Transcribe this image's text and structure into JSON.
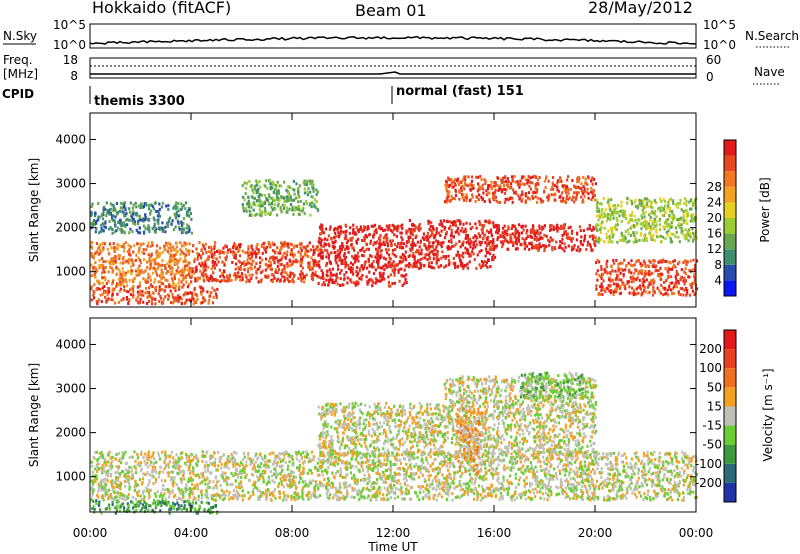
{
  "header": {
    "station": "Hokkaido (fitACF)",
    "beam": "Beam 01",
    "date": "28/May/2012"
  },
  "strip": {
    "nsky_label": "N.Sky",
    "nsearch_label": "N.Search",
    "nsky_ticks": [
      "10^5",
      "10^0"
    ],
    "nsearch_ticks": [
      "10^5",
      "10^0"
    ],
    "freq_label": "Freq.",
    "freq_unit": "[MHz]",
    "freq_ticks": [
      "18",
      "8"
    ],
    "nave_label": "Nave",
    "nave_ticks": [
      "60",
      "0"
    ],
    "cpid_label": "CPID",
    "modes": [
      {
        "name": "themis 3300",
        "start_hour": 0
      },
      {
        "name": "normal (fast) 151",
        "start_hour": 12
      }
    ]
  },
  "chart_data": [
    {
      "type": "heatmap",
      "title": "",
      "xlabel": "Time UT",
      "ylabel": "Slant Range [km]",
      "xlim": [
        0,
        24
      ],
      "xticks": [
        "00:00",
        "04:00",
        "08:00",
        "12:00",
        "16:00",
        "20:00",
        "00:00"
      ],
      "ylim": [
        200,
        4600
      ],
      "yticks": [
        "1000",
        "2000",
        "3000",
        "4000"
      ],
      "colorbar": {
        "label": "Power [dB]",
        "ticks": [
          "4",
          "8",
          "12",
          "16",
          "20",
          "24",
          "28"
        ],
        "colors": [
          "#0b16f0",
          "#2a4bb0",
          "#3f8e6e",
          "#6aa84f",
          "#9acd32",
          "#e8d020",
          "#f4a020",
          "#f07820",
          "#e84820",
          "#e31a1c"
        ]
      },
      "regions": [
        {
          "t0": 0.0,
          "t1": 4.0,
          "r0": 700,
          "r1": 1700,
          "level": 7
        },
        {
          "t0": 0.0,
          "t1": 5.0,
          "r0": 300,
          "r1": 700,
          "level": 8
        },
        {
          "t0": 4.0,
          "t1": 9.0,
          "r0": 800,
          "r1": 1700,
          "level": 8
        },
        {
          "t0": 9.0,
          "t1": 12.5,
          "r0": 700,
          "r1": 2100,
          "level": 9
        },
        {
          "t0": 12.5,
          "t1": 16.0,
          "r0": 1100,
          "r1": 2200,
          "level": 9
        },
        {
          "t0": 16.0,
          "t1": 20.0,
          "r0": 1500,
          "r1": 2100,
          "level": 9
        },
        {
          "t0": 20.0,
          "t1": 24.0,
          "r0": 500,
          "r1": 1300,
          "level": 8
        },
        {
          "t0": 14.0,
          "t1": 20.0,
          "r0": 2600,
          "r1": 3200,
          "level": 8
        },
        {
          "t0": 6.0,
          "t1": 9.0,
          "r0": 2300,
          "r1": 3100,
          "level": 3
        },
        {
          "t0": 0.0,
          "t1": 4.0,
          "r0": 1900,
          "r1": 2600,
          "level": 2
        },
        {
          "t0": 20.0,
          "t1": 24.0,
          "r0": 1700,
          "r1": 2700,
          "level": 4
        }
      ]
    },
    {
      "type": "heatmap",
      "title": "",
      "xlabel": "Time UT",
      "ylabel": "Slant Range [km]",
      "xlim": [
        0,
        24
      ],
      "xticks": [
        "00:00",
        "04:00",
        "08:00",
        "12:00",
        "16:00",
        "20:00",
        "00:00"
      ],
      "ylim": [
        200,
        4600
      ],
      "yticks": [
        "1000",
        "2000",
        "3000",
        "4000"
      ],
      "colorbar": {
        "label": "Velocity [m s⁻¹]",
        "ticks": [
          "200",
          "100",
          "50",
          "15",
          "-15",
          "-50",
          "-100",
          "-200"
        ],
        "colors": [
          "#2233aa",
          "#2c6a7a",
          "#3f9a3f",
          "#6acd32",
          "#c0c0b8",
          "#f4a020",
          "#f07020",
          "#e84020",
          "#e31a1c"
        ]
      },
      "regions": [
        {
          "t0": 0.0,
          "t1": 24.0,
          "r0": 500,
          "r1": 1600,
          "level": 4
        },
        {
          "t0": 9.0,
          "t1": 20.0,
          "r0": 1500,
          "r1": 2700,
          "level": 4
        },
        {
          "t0": 14.0,
          "t1": 20.0,
          "r0": 2700,
          "r1": 3300,
          "level": 4
        },
        {
          "t0": 17.0,
          "t1": 19.5,
          "r0": 2800,
          "r1": 3400,
          "level": 3
        },
        {
          "t0": 14.5,
          "t1": 15.5,
          "r0": 1100,
          "r1": 2600,
          "level": 5
        },
        {
          "t0": 0.0,
          "t1": 5.0,
          "r0": 200,
          "r1": 500,
          "level": 2
        }
      ]
    }
  ]
}
